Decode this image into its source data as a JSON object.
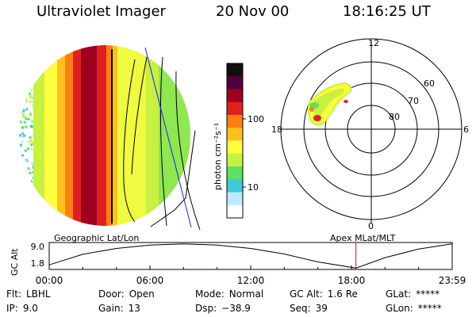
{
  "header": {
    "instrument": "Ultraviolet Imager",
    "date": "20 Nov 00",
    "time": "18:16:25 UT"
  },
  "colorbar": {
    "ylabel": "photon cm⁻²s⁻¹",
    "tick_labels": [
      "100",
      "10"
    ],
    "scale": "log",
    "colors": [
      "#ffffff",
      "#bfe9ff",
      "#40c8d8",
      "#60e060",
      "#c8f040",
      "#ffff40",
      "#ffc020",
      "#ff8010",
      "#e02020",
      "#a00020",
      "#500040",
      "#101010"
    ]
  },
  "polar_plot": {
    "clock_labels": [
      "12",
      "18",
      "6",
      "0"
    ],
    "lat_labels": [
      "60",
      "70",
      "80"
    ]
  },
  "timeline": {
    "left_label": "Geographic Lat/Lon",
    "right_label": "Apex MLat/MLT",
    "axis_label": "GC Alt",
    "y_ticks": [
      "9.0",
      "1.8"
    ],
    "x_ticks": [
      "00:00",
      "06:00",
      "12:00",
      "18:00",
      "23:59"
    ],
    "marker_color": "#ff0000"
  },
  "info": {
    "filter_label": "Flt:",
    "filter_value": "LBHL",
    "door_label": "Door:",
    "door_value": "Open",
    "mode_label": "Mode:",
    "mode_value": "Normal",
    "gcalt_label": "GC Alt:",
    "gcalt_value": "1.6 Re",
    "glat_label": "GLat:",
    "glat_value": "*****",
    "ip_label": "IP:",
    "ip_value": "9.0",
    "gain_label": "Gain:",
    "gain_value": "13",
    "dsp_label": "Dsp:",
    "dsp_value": "−38.9",
    "seq_label": "Seq:",
    "seq_value": "39",
    "glon_label": "GLon:",
    "glon_value": "*****"
  },
  "chart_data": [
    {
      "type": "heatmap",
      "title": "",
      "colorbar_label": "photon cm⁻²s⁻¹",
      "colorbar_ticks": [
        10,
        100
      ],
      "scale": "log"
    },
    {
      "type": "scatter",
      "title": "",
      "radial_labels": [
        60,
        70,
        80
      ],
      "clock_labels": [
        "12",
        "18",
        "6",
        "0"
      ]
    },
    {
      "type": "line",
      "xlabel": "",
      "ylabel": "GC Alt",
      "x_ticks": [
        "00:00",
        "06:00",
        "12:00",
        "18:00",
        "23:59"
      ],
      "y_ticks": [
        9.0,
        1.8
      ],
      "marker_time": "18:16",
      "x": [
        0,
        2,
        4,
        6,
        8,
        10,
        12,
        14,
        16,
        18.27,
        20,
        22,
        23.98
      ],
      "y": [
        2.6,
        5.8,
        7.6,
        8.6,
        9.0,
        8.6,
        7.6,
        5.9,
        3.5,
        1.6,
        4.8,
        7.4,
        9.0
      ]
    }
  ]
}
